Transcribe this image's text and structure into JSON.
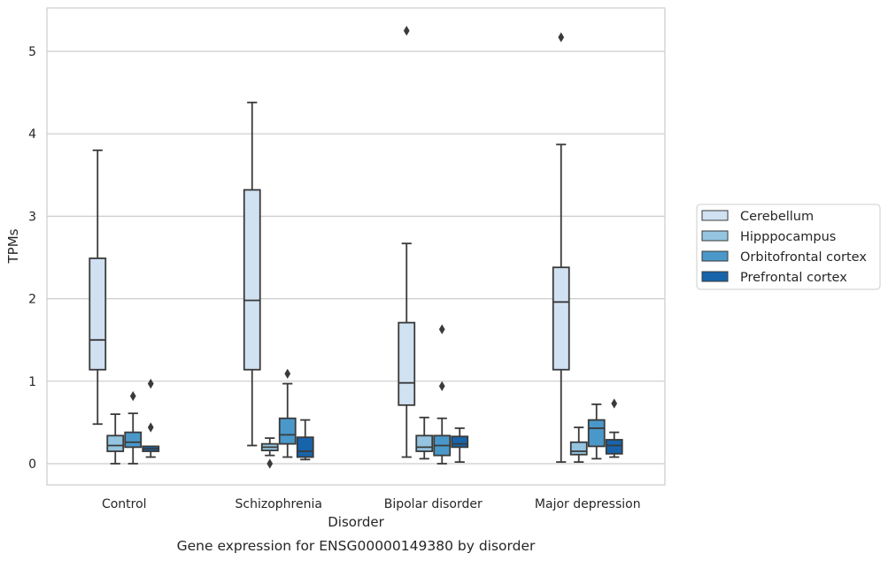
{
  "chart_data": {
    "type": "box",
    "title": "",
    "caption": "Gene expression for ENSG00000149380 by disorder",
    "xlabel": "Disorder",
    "ylabel": "TPMs",
    "ylim": [
      -0.25,
      5.52
    ],
    "yticks": [
      0,
      1,
      2,
      3,
      4,
      5
    ],
    "grid": "horizontal",
    "legend_position": "right",
    "categories": [
      "Control",
      "Schizophrenia",
      "Bipolar disorder",
      "Major depression"
    ],
    "series": [
      {
        "name": "Cerebellum",
        "color": "#d0e1f2",
        "boxes": [
          {
            "whislo": 0.48,
            "q1": 1.14,
            "med": 1.5,
            "q3": 2.49,
            "whishi": 3.8,
            "fliers": []
          },
          {
            "whislo": 0.22,
            "q1": 1.14,
            "med": 1.98,
            "q3": 3.32,
            "whishi": 4.38,
            "fliers": []
          },
          {
            "whislo": 0.08,
            "q1": 0.71,
            "med": 0.98,
            "q3": 1.71,
            "whishi": 2.67,
            "fliers": [
              5.25
            ]
          },
          {
            "whislo": 0.02,
            "q1": 1.14,
            "med": 1.96,
            "q3": 2.38,
            "whishi": 3.87,
            "fliers": [
              5.17
            ]
          }
        ]
      },
      {
        "name": "Hipppocampus",
        "color": "#94c4df",
        "boxes": [
          {
            "whislo": 0.0,
            "q1": 0.15,
            "med": 0.22,
            "q3": 0.34,
            "whishi": 0.6,
            "fliers": []
          },
          {
            "whislo": 0.1,
            "q1": 0.16,
            "med": 0.2,
            "q3": 0.24,
            "whishi": 0.31,
            "fliers": [
              0.0
            ]
          },
          {
            "whislo": 0.06,
            "q1": 0.15,
            "med": 0.2,
            "q3": 0.34,
            "whishi": 0.56,
            "fliers": []
          },
          {
            "whislo": 0.02,
            "q1": 0.11,
            "med": 0.15,
            "q3": 0.26,
            "whishi": 0.44,
            "fliers": []
          }
        ]
      },
      {
        "name": "Orbitofrontal cortex",
        "color": "#4a98c9",
        "boxes": [
          {
            "whislo": 0.0,
            "q1": 0.2,
            "med": 0.26,
            "q3": 0.38,
            "whishi": 0.61,
            "fliers": [
              0.82
            ]
          },
          {
            "whislo": 0.08,
            "q1": 0.24,
            "med": 0.35,
            "q3": 0.55,
            "whishi": 0.97,
            "fliers": [
              1.09
            ]
          },
          {
            "whislo": 0.0,
            "q1": 0.1,
            "med": 0.22,
            "q3": 0.34,
            "whishi": 0.55,
            "fliers": [
              0.94,
              1.63
            ]
          },
          {
            "whislo": 0.06,
            "q1": 0.21,
            "med": 0.43,
            "q3": 0.53,
            "whishi": 0.72,
            "fliers": []
          }
        ]
      },
      {
        "name": "Prefrontal cortex",
        "color": "#1764ab",
        "boxes": [
          {
            "whislo": 0.08,
            "q1": 0.15,
            "med": 0.18,
            "q3": 0.21,
            "whishi": 0.21,
            "fliers": [
              0.44,
              0.97
            ]
          },
          {
            "whislo": 0.05,
            "q1": 0.08,
            "med": 0.15,
            "q3": 0.32,
            "whishi": 0.53,
            "fliers": []
          },
          {
            "whislo": 0.02,
            "q1": 0.2,
            "med": 0.24,
            "q3": 0.33,
            "whishi": 0.43,
            "fliers": []
          },
          {
            "whislo": 0.08,
            "q1": 0.12,
            "med": 0.22,
            "q3": 0.29,
            "whishi": 0.38,
            "fliers": [
              0.73
            ]
          }
        ]
      }
    ]
  }
}
